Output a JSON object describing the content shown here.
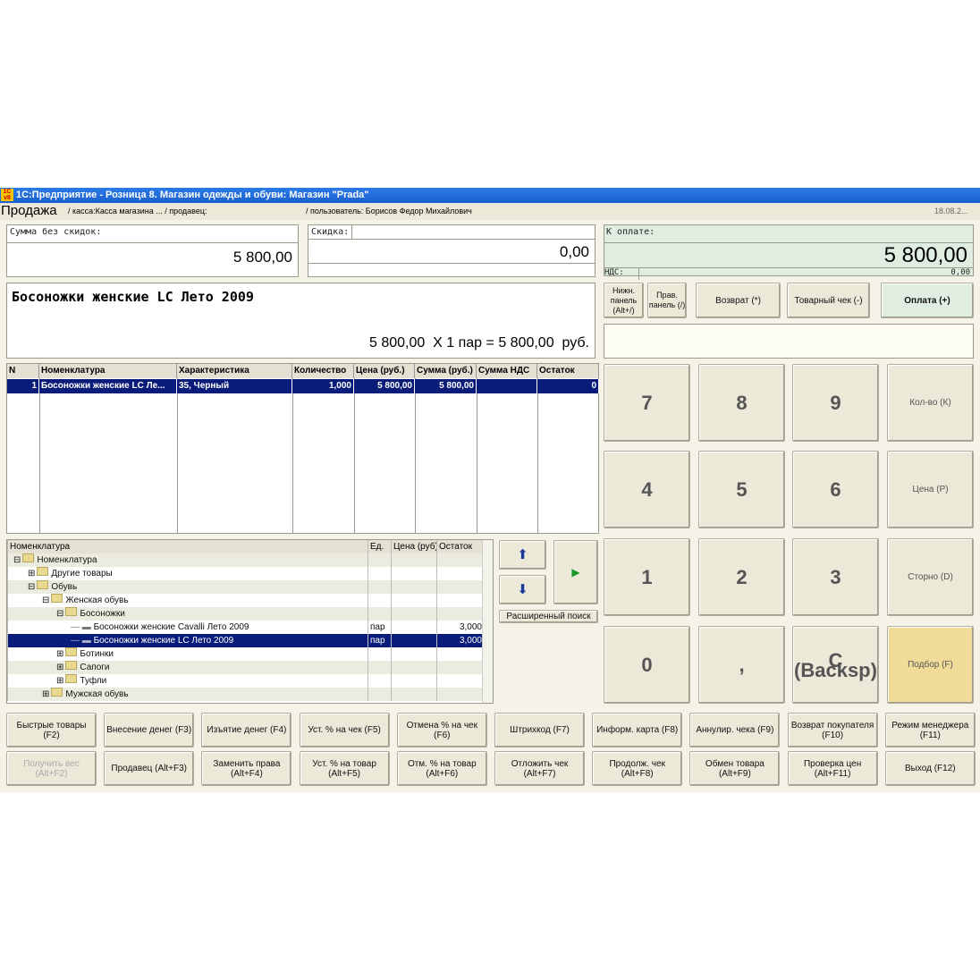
{
  "window": {
    "title": "1С:Предприятие - Розница 8. Магазин одежды и обуви: Магазин \"Prada\"",
    "logo": "1С v8"
  },
  "header": {
    "title": "Продажа",
    "cash": "/ касса:Касса магазина ... / продавец:",
    "user": "/ пользователь: Борисов Федор Михайлович",
    "date": "18.08.2..."
  },
  "totals": {
    "sum_label": "Сумма без скидок:",
    "sum_value": "5 800,00",
    "discount_label": "Скидка:",
    "discount_value": "0,00",
    "pay_label": "К оплате:",
    "pay_value": "5 800,00",
    "vat_label": "НДС:",
    "vat_value": "0,00"
  },
  "product": {
    "name": "Босоножки женские LC Лето 2009",
    "calc": "5 800,00  X 1 пар = 5 800,00  руб."
  },
  "top_buttons": [
    {
      "label": "Нижн. панель (Alt+/)"
    },
    {
      "label": "Прав. панель (/)"
    },
    {
      "label": "Возврат (*)"
    },
    {
      "label": "Товарный чек (-)"
    },
    {
      "label": "Оплата (+)"
    }
  ],
  "table": {
    "columns": [
      "N",
      "Номенклатура",
      "Характеристика",
      "Количество",
      "Цена (руб.)",
      "Сумма (руб.)",
      "Сумма НДС",
      "Остаток"
    ],
    "rows": [
      [
        "1",
        "Босоножки женские LC Ле...",
        "35, Черный",
        "1,000",
        "5 800,00",
        "5 800,00",
        "",
        "0"
      ]
    ]
  },
  "keypad": [
    "7",
    "8",
    "9",
    "Кол-во (К)",
    "4",
    "5",
    "6",
    "Цена (Р)",
    "1",
    "2",
    "3",
    "Сторно (D)",
    "0",
    ",",
    "С (Backsp)",
    "Подбор (F)"
  ],
  "tree": {
    "columns": [
      "Номенклатура",
      "Ед.",
      "Цена (руб)",
      "Остаток"
    ],
    "rows": [
      {
        "label": "Номенклатура",
        "level": 0,
        "type": "minus",
        "unit": "",
        "price": "",
        "stock": ""
      },
      {
        "label": "Другие товары",
        "level": 1,
        "type": "plus",
        "unit": "",
        "price": "",
        "stock": ""
      },
      {
        "label": "Обувь",
        "level": 1,
        "type": "minus",
        "unit": "",
        "price": "",
        "stock": ""
      },
      {
        "label": "Женская обувь",
        "level": 2,
        "type": "minus",
        "unit": "",
        "price": "",
        "stock": ""
      },
      {
        "label": "Босоножки",
        "level": 3,
        "type": "minus",
        "unit": "",
        "price": "",
        "stock": ""
      },
      {
        "label": "Босоножки женские Cavalli Лето 2009",
        "level": 4,
        "type": "item",
        "unit": "пар",
        "price": "",
        "stock": "3,000"
      },
      {
        "label": "Босоножки женские LC Лето 2009",
        "level": 4,
        "type": "item",
        "unit": "пар",
        "price": "",
        "stock": "3,000",
        "selected": true
      },
      {
        "label": "Ботинки",
        "level": 3,
        "type": "plus",
        "unit": "",
        "price": "",
        "stock": ""
      },
      {
        "label": "Сапоги",
        "level": 3,
        "type": "plus",
        "unit": "",
        "price": "",
        "stock": ""
      },
      {
        "label": "Туфли",
        "level": 3,
        "type": "plus",
        "unit": "",
        "price": "",
        "stock": ""
      },
      {
        "label": "Мужская обувь",
        "level": 2,
        "type": "plus",
        "unit": "",
        "price": "",
        "stock": ""
      }
    ]
  },
  "nav": {
    "up": "⬆",
    "down": "⬇",
    "right": "▶",
    "search": "Расширенный поиск"
  },
  "bottom_buttons": [
    [
      "Быстрые товары (F2)",
      "Внесение денег (F3)",
      "Изъятие денег (F4)",
      "Уст. % на чек (F5)",
      "Отмена % на чек (F6)",
      "Штрихкод (F7)",
      "Информ. карта (F8)",
      "Аннулир. чека (F9)",
      "Возврат покупателя (F10)",
      "Режим менеджера (F11)"
    ],
    [
      "Получить вес (Alt+F2)",
      "Продавец (Alt+F3)",
      "Заменить права (Alt+F4)",
      "Уст. % на товар (Alt+F5)",
      "Отм. % на товар (Alt+F6)",
      "Отложить чек (Alt+F7)",
      "Продолж. чек (Alt+F8)",
      "Обмен товара (Alt+F9)",
      "Проверка цен (Alt+F11)",
      "Выход (F12)"
    ]
  ],
  "colors": {
    "titlebar": "#1f6fe0",
    "selection": "#0a1c7a",
    "pay_bg": "#dfeee0",
    "podbor": "#f0dc98"
  }
}
